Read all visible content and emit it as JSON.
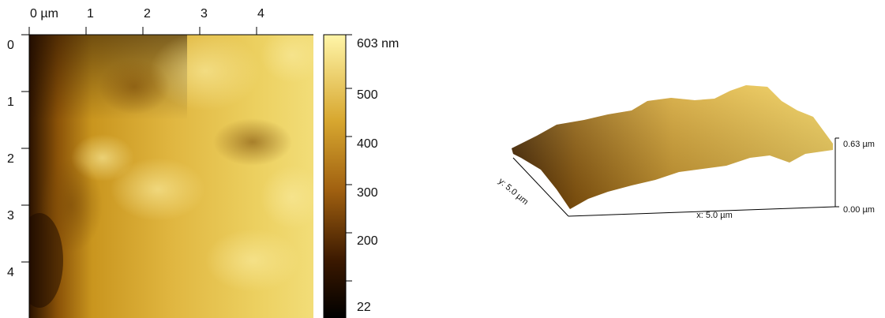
{
  "height_map": {
    "x_ticks": [
      "0 µm",
      "1",
      "2",
      "3",
      "4"
    ],
    "y_ticks": [
      "0",
      "1",
      "2",
      "3",
      "4"
    ],
    "colorbar_labels": [
      "603 nm",
      "500",
      "400",
      "300",
      "200",
      "22"
    ]
  },
  "view_3d": {
    "y_label": "y: 5.0 µm",
    "x_label": "x: 5.0 µm",
    "z_labels": [
      "0.63 µm",
      "0.00 µm"
    ]
  }
}
